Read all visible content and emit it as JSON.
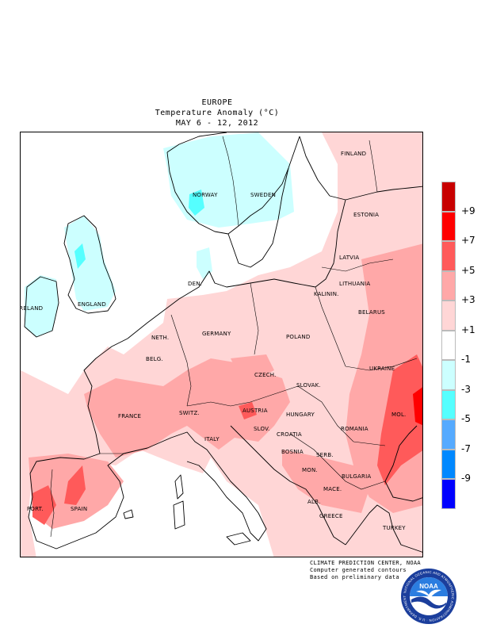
{
  "header": {
    "region": "EUROPE",
    "title": "Temperature Anomaly (°C)",
    "period": "MAY 6 - 12, 2012"
  },
  "map": {
    "countries": [
      {
        "id": "finland",
        "label": "FINLAND"
      },
      {
        "id": "norway",
        "label": "NORWAY"
      },
      {
        "id": "sweden",
        "label": "SWEDEN"
      },
      {
        "id": "estonia",
        "label": "ESTONIA"
      },
      {
        "id": "latvia",
        "label": "LATVIA"
      },
      {
        "id": "denmark",
        "label": "DEN."
      },
      {
        "id": "lithuania",
        "label": "LITHUANIA"
      },
      {
        "id": "kaliningrad",
        "label": "KALININ."
      },
      {
        "id": "ireland",
        "label": "IRELAND"
      },
      {
        "id": "england",
        "label": "ENGLAND"
      },
      {
        "id": "belarus",
        "label": "BELARUS"
      },
      {
        "id": "netherlands",
        "label": "NETH."
      },
      {
        "id": "germany",
        "label": "GERMANY"
      },
      {
        "id": "poland",
        "label": "POLAND"
      },
      {
        "id": "belgium",
        "label": "BELG."
      },
      {
        "id": "czech",
        "label": "CZECH."
      },
      {
        "id": "ukraine",
        "label": "UKRAINE"
      },
      {
        "id": "slovakia",
        "label": "SLOVAK."
      },
      {
        "id": "france",
        "label": "FRANCE"
      },
      {
        "id": "switzerland",
        "label": "SWITZ."
      },
      {
        "id": "austria",
        "label": "AUSTRIA"
      },
      {
        "id": "hungary",
        "label": "HUNGARY"
      },
      {
        "id": "moldova",
        "label": "MOL."
      },
      {
        "id": "slovenia",
        "label": "SLOV."
      },
      {
        "id": "romania",
        "label": "ROMANIA"
      },
      {
        "id": "italy",
        "label": "ITALY"
      },
      {
        "id": "croatia",
        "label": "CROATIA"
      },
      {
        "id": "bosnia",
        "label": "BOSNIA"
      },
      {
        "id": "serbia",
        "label": "SERB."
      },
      {
        "id": "bulgaria",
        "label": "BULGARIA"
      },
      {
        "id": "montenegro",
        "label": "MON."
      },
      {
        "id": "macedonia",
        "label": "MACE."
      },
      {
        "id": "portugal",
        "label": "PORT."
      },
      {
        "id": "spain",
        "label": "SPAIN"
      },
      {
        "id": "albania",
        "label": "ALB."
      },
      {
        "id": "greece",
        "label": "GREECE"
      },
      {
        "id": "turkey",
        "label": "TURKEY"
      }
    ],
    "colors": {
      "ocean": "#ffffff",
      "land_neutral": "#ffffff",
      "warm_1_3": "#ffd6d6",
      "warm_3_5": "#ffa8a8",
      "warm_5_7": "#ff5a5a",
      "warm_7_9": "#ff0000",
      "cool_1_3": "#ccffff",
      "cool_3_5": "#55ffff",
      "coast": "#000000"
    }
  },
  "legend": {
    "bins": [
      {
        "color": "#c80000"
      },
      {
        "color": "#ff0000"
      },
      {
        "color": "#ff5a5a"
      },
      {
        "color": "#ffa8a8"
      },
      {
        "color": "#ffd6d6"
      },
      {
        "color": "#ffffff"
      },
      {
        "color": "#ccffff"
      },
      {
        "color": "#55ffff"
      },
      {
        "color": "#55aaff"
      },
      {
        "color": "#0088ff"
      },
      {
        "color": "#0000ff"
      }
    ],
    "ticks": [
      "+9",
      "+7",
      "+5",
      "+3",
      "+1",
      "-1",
      "-3",
      "-5",
      "-7",
      "-9"
    ]
  },
  "credits": {
    "line1": "CLIMATE PREDICTION CENTER, NOAA",
    "line2": "Computer generated contours",
    "line3": "Based on preliminary data"
  },
  "logo": {
    "text": "NOAA",
    "ring_text": "NATIONAL OCEANIC AND ATMOSPHERIC ADMINISTRATION · U.S. DEPARTMENT OF COMMERCE"
  }
}
